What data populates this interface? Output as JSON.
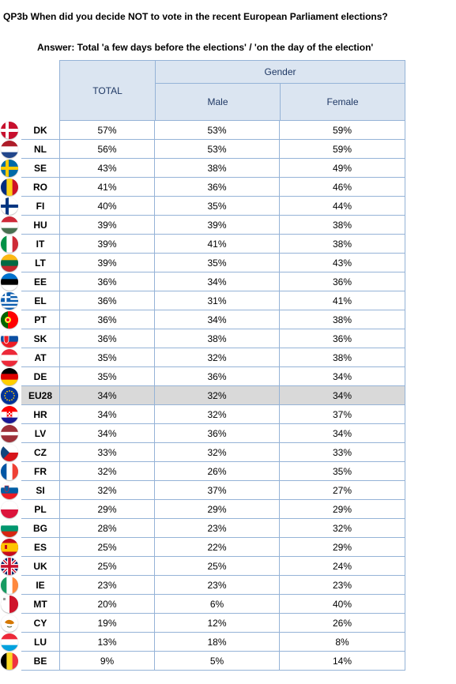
{
  "title": "QP3b When did you decide NOT to vote in the recent European Parliament elections?",
  "subtitle": "Answer: Total 'a few days before the elections' / 'on the day of the election'",
  "headers": {
    "total": "TOTAL",
    "gender": "Gender",
    "male": "Male",
    "female": "Female"
  },
  "colors": {
    "header_bg": "#dbe5f1",
    "border": "#95b3d7",
    "highlight_row": "#d9d9d9"
  },
  "rows": [
    {
      "code": "DK",
      "total": "57%",
      "male": "53%",
      "female": "59%",
      "flag": "dk-flag-icon"
    },
    {
      "code": "NL",
      "total": "56%",
      "male": "53%",
      "female": "59%",
      "flag": "nl-flag-icon"
    },
    {
      "code": "SE",
      "total": "43%",
      "male": "38%",
      "female": "49%",
      "flag": "se-flag-icon"
    },
    {
      "code": "RO",
      "total": "41%",
      "male": "36%",
      "female": "46%",
      "flag": "ro-flag-icon"
    },
    {
      "code": "FI",
      "total": "40%",
      "male": "35%",
      "female": "44%",
      "flag": "fi-flag-icon"
    },
    {
      "code": "HU",
      "total": "39%",
      "male": "39%",
      "female": "38%",
      "flag": "hu-flag-icon"
    },
    {
      "code": "IT",
      "total": "39%",
      "male": "41%",
      "female": "38%",
      "flag": "it-flag-icon"
    },
    {
      "code": "LT",
      "total": "39%",
      "male": "35%",
      "female": "43%",
      "flag": "lt-flag-icon"
    },
    {
      "code": "EE",
      "total": "36%",
      "male": "34%",
      "female": "36%",
      "flag": "ee-flag-icon"
    },
    {
      "code": "EL",
      "total": "36%",
      "male": "31%",
      "female": "41%",
      "flag": "el-flag-icon"
    },
    {
      "code": "PT",
      "total": "36%",
      "male": "34%",
      "female": "38%",
      "flag": "pt-flag-icon"
    },
    {
      "code": "SK",
      "total": "36%",
      "male": "38%",
      "female": "36%",
      "flag": "sk-flag-icon"
    },
    {
      "code": "AT",
      "total": "35%",
      "male": "32%",
      "female": "38%",
      "flag": "at-flag-icon"
    },
    {
      "code": "DE",
      "total": "35%",
      "male": "36%",
      "female": "34%",
      "flag": "de-flag-icon"
    },
    {
      "code": "EU28",
      "total": "34%",
      "male": "32%",
      "female": "34%",
      "flag": "eu-flag-icon",
      "highlight": true
    },
    {
      "code": "HR",
      "total": "34%",
      "male": "32%",
      "female": "37%",
      "flag": "hr-flag-icon"
    },
    {
      "code": "LV",
      "total": "34%",
      "male": "36%",
      "female": "34%",
      "flag": "lv-flag-icon"
    },
    {
      "code": "CZ",
      "total": "33%",
      "male": "32%",
      "female": "33%",
      "flag": "cz-flag-icon"
    },
    {
      "code": "FR",
      "total": "32%",
      "male": "26%",
      "female": "35%",
      "flag": "fr-flag-icon"
    },
    {
      "code": "SI",
      "total": "32%",
      "male": "37%",
      "female": "27%",
      "flag": "si-flag-icon"
    },
    {
      "code": "PL",
      "total": "29%",
      "male": "29%",
      "female": "29%",
      "flag": "pl-flag-icon"
    },
    {
      "code": "BG",
      "total": "28%",
      "male": "23%",
      "female": "32%",
      "flag": "bg-flag-icon"
    },
    {
      "code": "ES",
      "total": "25%",
      "male": "22%",
      "female": "29%",
      "flag": "es-flag-icon"
    },
    {
      "code": "UK",
      "total": "25%",
      "male": "25%",
      "female": "24%",
      "flag": "uk-flag-icon"
    },
    {
      "code": "IE",
      "total": "23%",
      "male": "23%",
      "female": "23%",
      "flag": "ie-flag-icon"
    },
    {
      "code": "MT",
      "total": "20%",
      "male": "6%",
      "female": "40%",
      "flag": "mt-flag-icon"
    },
    {
      "code": "CY",
      "total": "19%",
      "male": "12%",
      "female": "26%",
      "flag": "cy-flag-icon"
    },
    {
      "code": "LU",
      "total": "13%",
      "male": "18%",
      "female": "8%",
      "flag": "lu-flag-icon"
    },
    {
      "code": "BE",
      "total": "9%",
      "male": "5%",
      "female": "14%",
      "flag": "be-flag-icon"
    }
  ]
}
